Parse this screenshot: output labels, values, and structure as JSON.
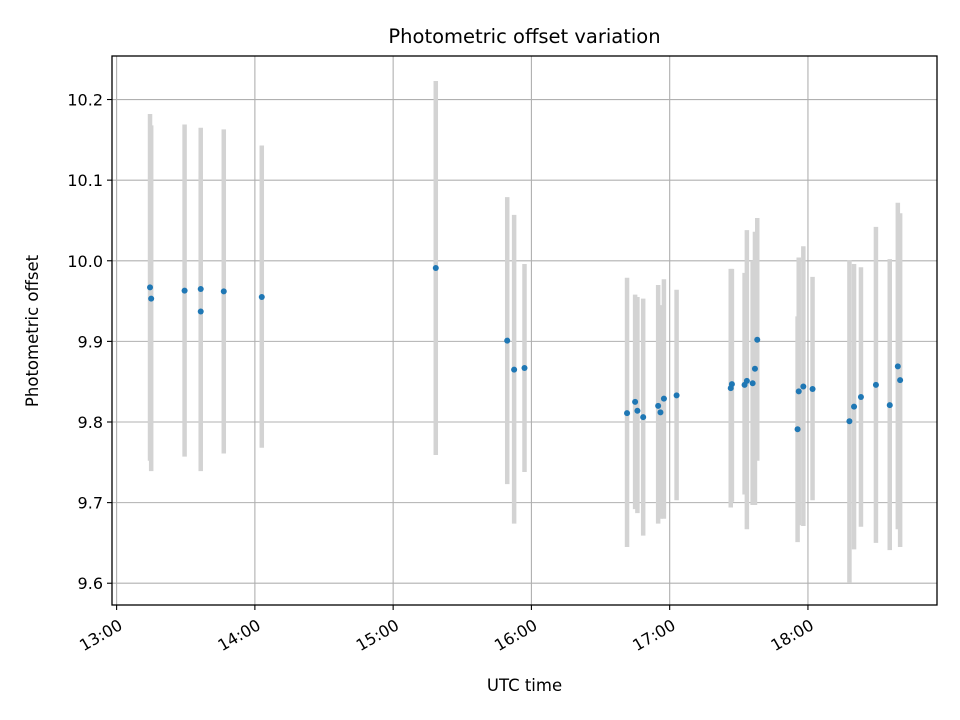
{
  "chart_data": {
    "type": "scatter",
    "title": "Photometric offset variation",
    "xlabel": "UTC time",
    "ylabel": "Photometric offset",
    "x_is_time": true,
    "xlim": [
      "12:58",
      "18:56"
    ],
    "ylim": [
      9.573,
      10.254
    ],
    "grid": true,
    "x_ticks": [
      "13:00",
      "14:00",
      "15:00",
      "16:00",
      "17:00",
      "18:00"
    ],
    "y_ticks": [
      "9.6",
      "9.7",
      "9.8",
      "9.9",
      "10.0",
      "10.1",
      "10.2"
    ],
    "series": [
      {
        "marker_color": "#1f77b4",
        "errorbar_color": "#d3d3d3",
        "points": [
          {
            "t": "13:14.5",
            "y": 9.967,
            "lo": 9.752,
            "hi": 10.182
          },
          {
            "t": "13:15.0",
            "y": 9.953,
            "lo": 9.739,
            "hi": 10.168
          },
          {
            "t": "13:29.5",
            "y": 9.963,
            "lo": 9.757,
            "hi": 10.169
          },
          {
            "t": "13:36.5",
            "y": 9.937,
            "lo": 9.762,
            "hi": 10.112
          },
          {
            "t": "13:36.5",
            "y": 9.965,
            "lo": 9.739,
            "hi": 10.165
          },
          {
            "t": "13:46.5",
            "y": 9.962,
            "lo": 9.761,
            "hi": 10.163
          },
          {
            "t": "14:03.0",
            "y": 9.955,
            "lo": 9.768,
            "hi": 10.143
          },
          {
            "t": "15:18.5",
            "y": 9.991,
            "lo": 9.759,
            "hi": 10.223
          },
          {
            "t": "15:49.5",
            "y": 9.901,
            "lo": 9.723,
            "hi": 10.079
          },
          {
            "t": "15:52.5",
            "y": 9.865,
            "lo": 9.674,
            "hi": 10.057
          },
          {
            "t": "15:57.0",
            "y": 9.867,
            "lo": 9.738,
            "hi": 9.996
          },
          {
            "t": "16:41.5",
            "y": 9.811,
            "lo": 9.645,
            "hi": 9.979
          },
          {
            "t": "16:45.0",
            "y": 9.825,
            "lo": 9.692,
            "hi": 9.958
          },
          {
            "t": "16:46.0",
            "y": 9.814,
            "lo": 9.687,
            "hi": 9.955
          },
          {
            "t": "16:48.5",
            "y": 9.806,
            "lo": 9.659,
            "hi": 9.953
          },
          {
            "t": "16:55.0",
            "y": 9.82,
            "lo": 9.674,
            "hi": 9.97
          },
          {
            "t": "16:56.0",
            "y": 9.812,
            "lo": 9.68,
            "hi": 9.945
          },
          {
            "t": "16:57.5",
            "y": 9.829,
            "lo": 9.68,
            "hi": 9.977
          },
          {
            "t": "17:03.0",
            "y": 9.833,
            "lo": 9.703,
            "hi": 9.964
          },
          {
            "t": "17:26.5",
            "y": 9.842,
            "lo": 9.694,
            "hi": 9.99
          },
          {
            "t": "17:27.0",
            "y": 9.847,
            "lo": 9.701,
            "hi": 9.99
          },
          {
            "t": "17:32.5",
            "y": 9.846,
            "lo": 9.71,
            "hi": 9.985
          },
          {
            "t": "17:33.5",
            "y": 9.851,
            "lo": 9.667,
            "hi": 10.038
          },
          {
            "t": "17:36.0",
            "y": 9.848,
            "lo": 9.697,
            "hi": 10.0
          },
          {
            "t": "17:37.0",
            "y": 9.866,
            "lo": 9.697,
            "hi": 10.036
          },
          {
            "t": "17:38.0",
            "y": 9.902,
            "lo": 9.752,
            "hi": 10.053
          },
          {
            "t": "17:55.5",
            "y": 9.791,
            "lo": 9.651,
            "hi": 9.931
          },
          {
            "t": "17:56.0",
            "y": 9.838,
            "lo": 9.672,
            "hi": 10.004
          },
          {
            "t": "17:58.0",
            "y": 9.844,
            "lo": 9.671,
            "hi": 10.018
          },
          {
            "t": "18:02.0",
            "y": 9.841,
            "lo": 9.703,
            "hi": 9.98
          },
          {
            "t": "18:18.0",
            "y": 9.801,
            "lo": 9.601,
            "hi": 10.001
          },
          {
            "t": "18:20.0",
            "y": 9.819,
            "lo": 9.642,
            "hi": 9.996
          },
          {
            "t": "18:23.0",
            "y": 9.831,
            "lo": 9.67,
            "hi": 9.992
          },
          {
            "t": "18:29.5",
            "y": 9.846,
            "lo": 9.65,
            "hi": 10.042
          },
          {
            "t": "18:35.5",
            "y": 9.821,
            "lo": 9.641,
            "hi": 10.002
          },
          {
            "t": "18:39.0",
            "y": 9.869,
            "lo": 9.667,
            "hi": 10.072
          },
          {
            "t": "18:40.0",
            "y": 9.852,
            "lo": 9.645,
            "hi": 10.059
          }
        ]
      }
    ]
  }
}
